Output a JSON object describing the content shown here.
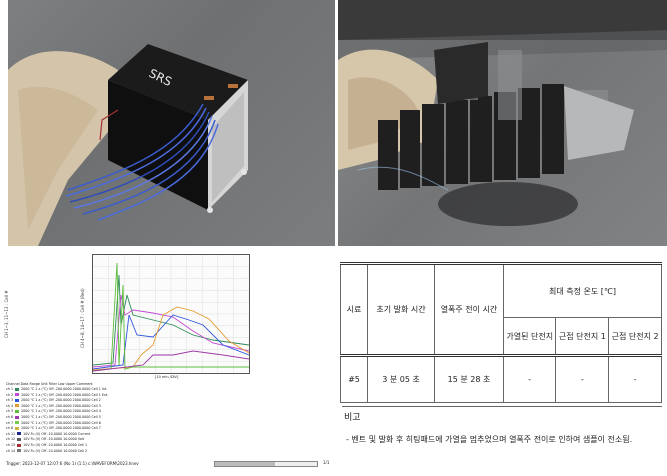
{
  "photos": {
    "before_label": "",
    "after_label": ""
  },
  "chart": {
    "y_axis_left": "CH 1~3, 11~13 : Cell #",
    "y_axis_right": "CH 4~8, 14~17 : Cell # (Red)",
    "x_axis": "[10 min /DIV]",
    "legend_headers": [
      "Channel",
      "Data",
      "Range",
      "Unit",
      "Filter",
      "Low",
      "Upper",
      "Comment"
    ],
    "legend_rows": [
      [
        "ch 1",
        "2000 ℃ 1 ᴀ",
        "(℃)",
        "Off",
        "-200.0000",
        "2000.0000",
        "Cell 1 Int."
      ],
      [
        "ch 2",
        "2000 ℃ 1 ᴀ",
        "(℃)",
        "Off",
        "-200.0000",
        "2000.0000",
        "Cell 1 Ext."
      ],
      [
        "ch 3",
        "2000 ℃ 1 ᴀ",
        "(℃)",
        "Off",
        "-200.0000",
        "2000.0000",
        "Cell 2"
      ],
      [
        "ch 4",
        "2000 ℃ 1 ᴀ",
        "(℃)",
        "Off",
        "-200.0000",
        "2000.0000",
        "Cell 3"
      ],
      [
        "ch 5",
        "2000 ℃ 1 ᴀ",
        "(℃)",
        "Off",
        "-200.0000",
        "2000.0000",
        "Cell 4"
      ],
      [
        "ch 6",
        "2000 ℃ 1 ᴀ",
        "(℃)",
        "Off",
        "-200.0000",
        "2000.0000",
        "Cell 5"
      ],
      [
        "ch 7",
        "2000 ℃ 1 ᴀ",
        "(℃)",
        "Off",
        "-200.0000",
        "2000.0000",
        "Cell 6"
      ],
      [
        "ch 8",
        "2000 ℃ 1 ᴀ",
        "(℃)",
        "Off",
        "-200.0000",
        "2000.0000",
        "Cell 7"
      ],
      [
        "ch 11",
        "10V Fu",
        "(V)",
        "Off",
        "-10.0000",
        "10.0000",
        "Current"
      ],
      [
        "ch 12",
        "10V Fu",
        "(V)",
        "Off",
        "-10.0000",
        "10.0000",
        "Volt"
      ],
      [
        "ch 13",
        "10V Fu",
        "(V)",
        "Off",
        "-10.0000",
        "10.0000",
        "Cell 1"
      ],
      [
        "ch 14",
        "10V Fu",
        "(V)",
        "Off",
        "-10.0000",
        "10.0000",
        "Cell 2"
      ]
    ],
    "legend_colors": [
      "#2e8b57",
      "#c44bd6",
      "#2f56d9",
      "#e39a2f",
      "#5dbd3a",
      "#9e3aa8",
      "#7cc94b",
      "#d4b23a",
      "#1d2a8a",
      "#5d5d5d",
      "#a33131",
      "#7a7a7a"
    ],
    "trigger": "Trigger: 2023-12-07 12:07:6 (No 1) (1:1) c:\\WAVEFORM\\2023.hnev",
    "page": "1/1"
  },
  "table": {
    "col_sample": "시료",
    "col_initial_ignition": "초기 발화 시간",
    "col_propagation": "열폭주 전이 시간",
    "col_max_temp_group": "최대 측정 온도 [℃]",
    "subcol_heated_cell": "가열된 단전지",
    "subcol_adjacent_1": "근접 단전지 1",
    "subcol_adjacent_2": "근접 단전지 2",
    "row": {
      "sample": "#5",
      "initial_ignition": "3 분 05 초",
      "propagation": "15 분 28 초",
      "heated_cell": "-",
      "adjacent_1": "-",
      "adjacent_2": "-"
    },
    "remark_title": "비고",
    "remark_text": "-   벤트 및 발화 후 히팅패드에 가열을 멈추었으며 열폭주 전이로 인하여 샘플이 전소됨."
  }
}
